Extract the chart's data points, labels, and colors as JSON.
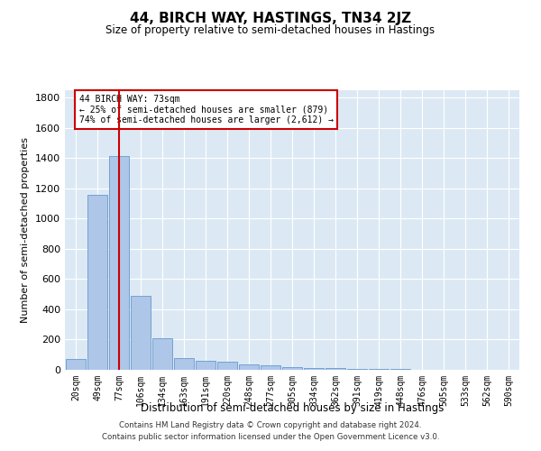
{
  "title": "44, BIRCH WAY, HASTINGS, TN34 2JZ",
  "subtitle": "Size of property relative to semi-detached houses in Hastings",
  "xlabel": "Distribution of semi-detached houses by size in Hastings",
  "ylabel": "Number of semi-detached properties",
  "categories": [
    "20sqm",
    "49sqm",
    "77sqm",
    "106sqm",
    "134sqm",
    "163sqm",
    "191sqm",
    "220sqm",
    "248sqm",
    "277sqm",
    "305sqm",
    "334sqm",
    "362sqm",
    "391sqm",
    "419sqm",
    "448sqm",
    "476sqm",
    "505sqm",
    "533sqm",
    "562sqm",
    "590sqm"
  ],
  "values": [
    72,
    1155,
    1415,
    490,
    210,
    75,
    62,
    55,
    38,
    28,
    20,
    10,
    12,
    5,
    5,
    3,
    2,
    2,
    1,
    1,
    1
  ],
  "bar_color": "#aec6e8",
  "bar_edge_color": "#6699cc",
  "background_color": "#dce9f5",
  "grid_color": "#ffffff",
  "annotation_text_line1": "44 BIRCH WAY: 73sqm",
  "annotation_text_line2": "← 25% of semi-detached houses are smaller (879)",
  "annotation_text_line3": "74% of semi-detached houses are larger (2,612) →",
  "vline_color": "#cc0000",
  "annotation_box_color": "#cc0000",
  "ylim": [
    0,
    1850
  ],
  "yticks": [
    0,
    200,
    400,
    600,
    800,
    1000,
    1200,
    1400,
    1600,
    1800
  ],
  "vline_x": 2.0,
  "footer_line1": "Contains HM Land Registry data © Crown copyright and database right 2024.",
  "footer_line2": "Contains public sector information licensed under the Open Government Licence v3.0."
}
